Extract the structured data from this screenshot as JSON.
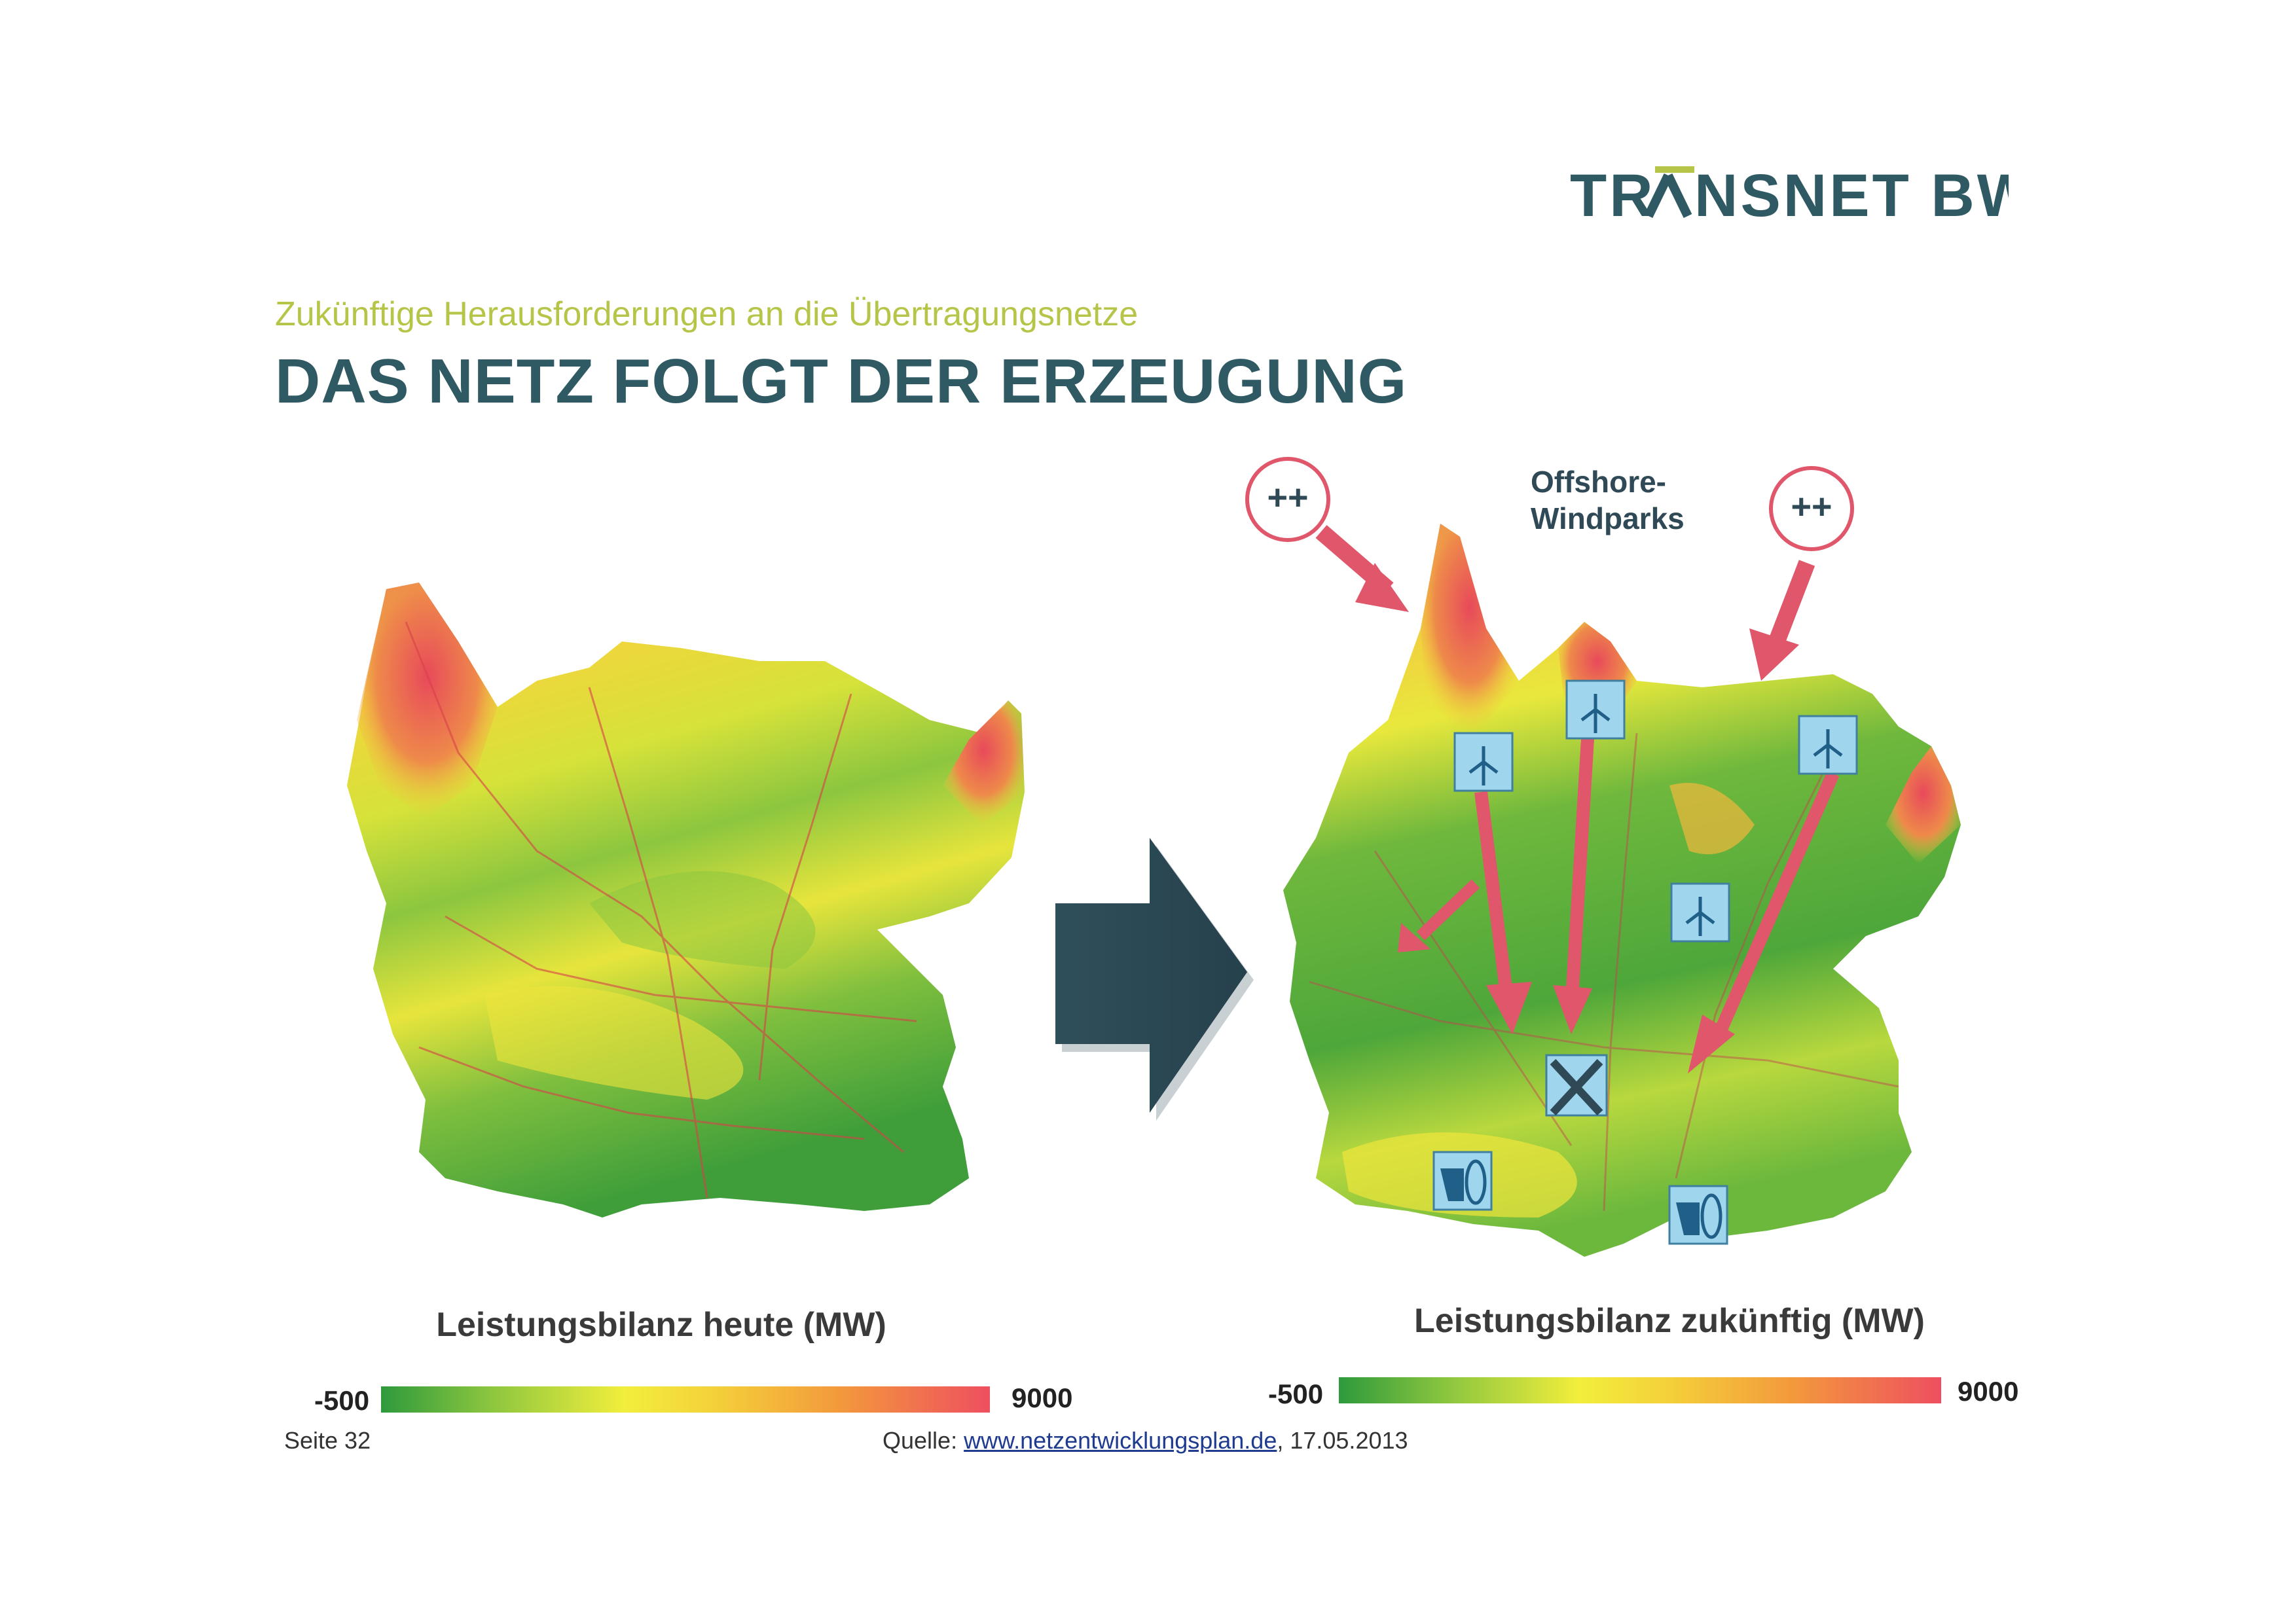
{
  "header": {
    "logo_text": "TRANSNET BW",
    "subtitle": "Zukünftige Herausforderungen an die Übertragungsnetze",
    "title": "DAS NETZ FOLGT DER ERZEUGUNG"
  },
  "maps": {
    "left": {
      "caption": "Leistungsbilanz heute (MW)",
      "scale_min": "-500",
      "scale_max": "9000"
    },
    "right": {
      "caption": "Leistungsbilanz zukünftig (MW)",
      "scale_min": "-500",
      "scale_max": "9000",
      "offshore_label_line1": "Offshore-",
      "offshore_label_line2": "Windparks",
      "plus_label": "++"
    }
  },
  "colors": {
    "brand_dark": "#2f5a64",
    "brand_accent": "#b6c548",
    "arrow_red": "#e0566a",
    "icon_blue": "#9fd6ee",
    "green": "#4caf3e",
    "yellow": "#f2ee3c",
    "red": "#ee4f5f"
  },
  "icons": [
    "wind-turbine-icon",
    "hydro-storage-icon",
    "crossed-out-plant-icon",
    "transition-arrow-icon"
  ],
  "footer": {
    "page": "Seite 32",
    "source_prefix": "Quelle: ",
    "source_link": "www.netzentwicklungsplan.de",
    "source_suffix": ", 17.05.2013"
  }
}
